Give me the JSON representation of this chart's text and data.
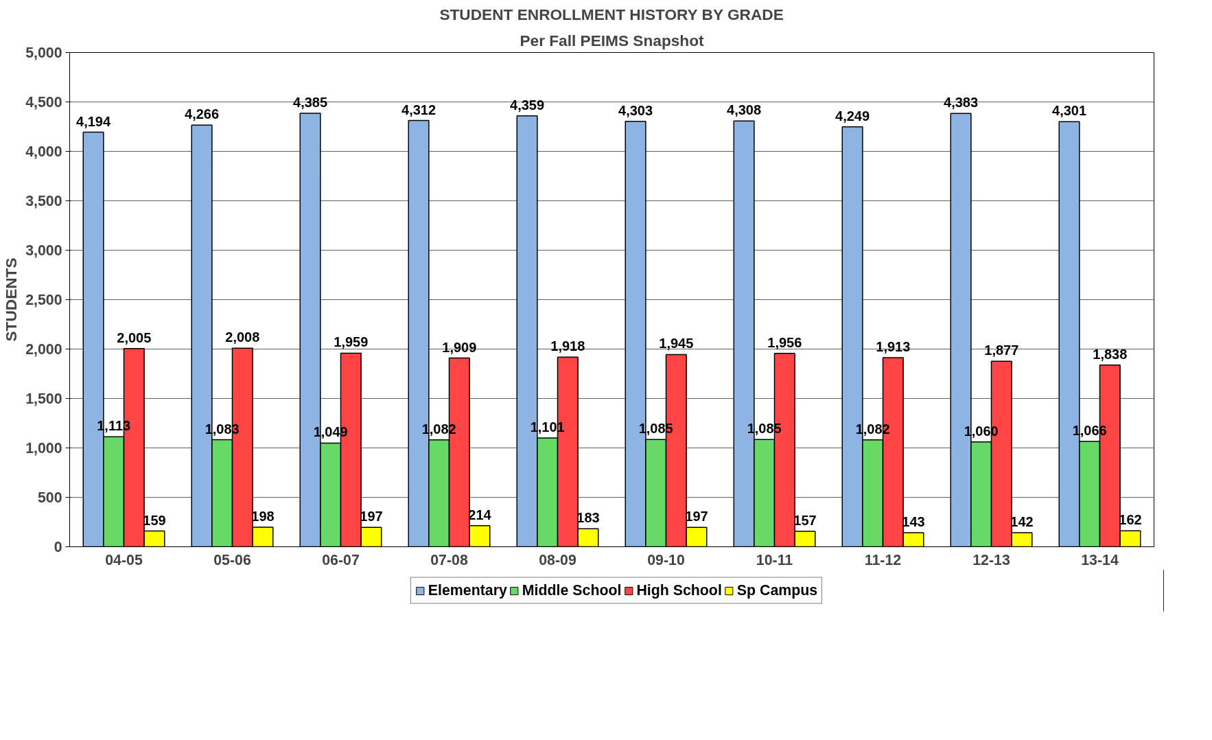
{
  "chart_data": {
    "type": "bar",
    "title": "STUDENT ENROLLMENT HISTORY BY GRADE",
    "subtitle": "Per Fall PEIMS Snapshot",
    "ylabel": "STUDENTS",
    "categories": [
      "04-05",
      "05-06",
      "06-07",
      "07-08",
      "08-09",
      "09-10",
      "10-11",
      "11-12",
      "12-13",
      "13-14"
    ],
    "series": [
      {
        "name": "Elementary",
        "color": "#8db4e2",
        "values": [
          4194,
          4266,
          4385,
          4312,
          4359,
          4303,
          4308,
          4249,
          4383,
          4301
        ],
        "value_labels": [
          "4,194",
          "4,266",
          "4,385",
          "4,312",
          "4,359",
          "4,303",
          "4,308",
          "4,249",
          "4,383",
          "4,301"
        ]
      },
      {
        "name": "Middle School",
        "color": "#66d966",
        "values": [
          1113,
          1083,
          1049,
          1082,
          1101,
          1085,
          1085,
          1082,
          1060,
          1066
        ],
        "value_labels": [
          "1,113",
          "1,083",
          "1,049",
          "1,082",
          "1,101",
          "1,085",
          "1,085",
          "1,082",
          "1,060",
          "1,066"
        ]
      },
      {
        "name": "High School",
        "color": "#ff4444",
        "values": [
          2005,
          2008,
          1959,
          1909,
          1918,
          1945,
          1956,
          1913,
          1877,
          1838
        ],
        "value_labels": [
          "2,005",
          "2,008",
          "1,959",
          "1,909",
          "1,918",
          "1,945",
          "1,956",
          "1,913",
          "1,877",
          "1,838"
        ]
      },
      {
        "name": "Sp Campus",
        "color": "#ffff00",
        "values": [
          159,
          198,
          197,
          214,
          183,
          197,
          157,
          143,
          142,
          162
        ],
        "value_labels": [
          "159",
          "198",
          "197",
          "214",
          "183",
          "197",
          "157",
          "143",
          "142",
          "162"
        ]
      }
    ],
    "ylim": [
      0,
      5000
    ],
    "yticks": [
      {
        "value": 0,
        "label": "0"
      },
      {
        "value": 500,
        "label": "500"
      },
      {
        "value": 1000,
        "label": "1,000"
      },
      {
        "value": 1500,
        "label": "1,500"
      },
      {
        "value": 2000,
        "label": "2,000"
      },
      {
        "value": 2500,
        "label": "2,500"
      },
      {
        "value": 3000,
        "label": "3,000"
      },
      {
        "value": 3500,
        "label": "3,500"
      },
      {
        "value": 4000,
        "label": "4,000"
      },
      {
        "value": 4500,
        "label": "4,500"
      },
      {
        "value": 5000,
        "label": "5,000"
      }
    ],
    "grid": "y",
    "legend": "bottom"
  }
}
